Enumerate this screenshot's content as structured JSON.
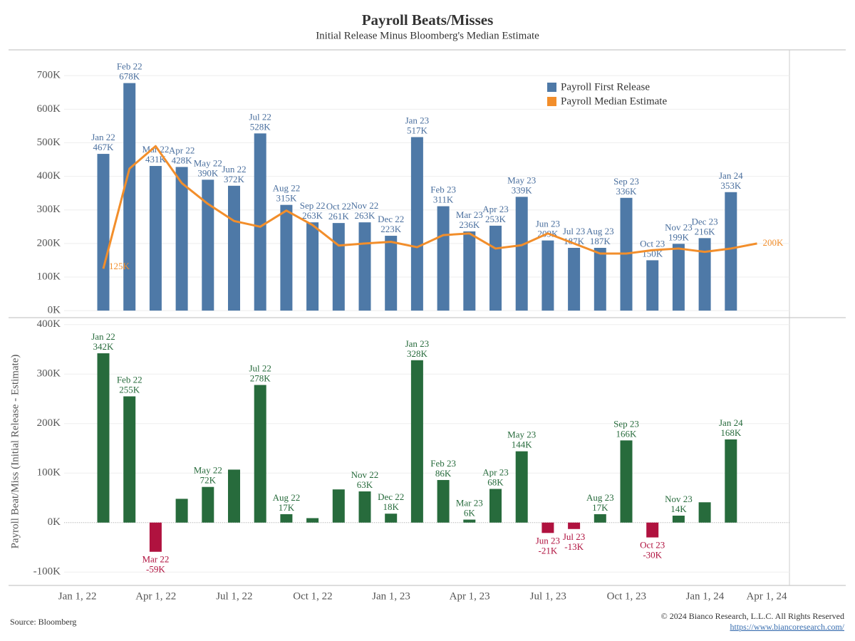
{
  "header": {
    "title": "Payroll Beats/Misses",
    "subtitle": "Initial Release Minus Bloomberg's Median Estimate"
  },
  "chart_data": [
    {
      "type": "bar",
      "categories": [
        "Jan 22",
        "Feb 22",
        "Mar 22",
        "Apr 22",
        "May 22",
        "Jun 22",
        "Jul 22",
        "Aug 22",
        "Sep 22",
        "Oct 22",
        "Nov 22",
        "Dec 22",
        "Jan 23",
        "Feb 23",
        "Mar 23",
        "Apr 23",
        "May 23",
        "Jun 23",
        "Jul 23",
        "Aug 23",
        "Sep 23",
        "Oct 23",
        "Nov 23",
        "Dec 23",
        "Jan 24",
        null
      ],
      "series": [
        {
          "name": "Payroll First Release",
          "type": "bar",
          "color": "#4e79a7",
          "values": [
            467,
            678,
            431,
            428,
            390,
            372,
            528,
            315,
            263,
            261,
            263,
            223,
            517,
            311,
            236,
            253,
            339,
            209,
            187,
            187,
            336,
            150,
            199,
            216,
            353,
            null
          ],
          "value_labels": [
            "467K",
            "678K",
            "431K",
            "428K",
            "390K",
            "372K",
            "528K",
            "315K",
            "263K",
            "261K",
            "263K",
            "223K",
            "517K",
            "311K",
            "236K",
            "253K",
            "339K",
            "209K",
            "187K",
            "187K",
            "336K",
            "150K",
            "199K",
            "216K",
            "353K",
            null
          ]
        },
        {
          "name": "Payroll Median Estimate",
          "type": "line",
          "color": "#f28e2b",
          "values": [
            125,
            423,
            490,
            380,
            318,
            267,
            250,
            298,
            255,
            194,
            200,
            205,
            189,
            225,
            230,
            185,
            195,
            230,
            200,
            170,
            170,
            180,
            185,
            175,
            185,
            200
          ],
          "value_labels": [
            "125K",
            null,
            null,
            null,
            null,
            null,
            null,
            null,
            null,
            null,
            null,
            null,
            null,
            null,
            null,
            null,
            null,
            null,
            null,
            null,
            null,
            null,
            null,
            null,
            null,
            "200K"
          ]
        }
      ],
      "ylim": [
        -21,
        777
      ],
      "yticks": [
        {
          "value": 0,
          "label": "0K"
        },
        {
          "value": 100,
          "label": "100K"
        },
        {
          "value": 200,
          "label": "200K"
        },
        {
          "value": 300,
          "label": "300K"
        },
        {
          "value": 400,
          "label": "400K"
        },
        {
          "value": 500,
          "label": "500K"
        },
        {
          "value": 600,
          "label": "600K"
        },
        {
          "value": 700,
          "label": "700K"
        }
      ],
      "grid": true,
      "legend": "top-right"
    },
    {
      "type": "beat",
      "ylabel": "Payroll Beat/Miss (Initial Release - Estimate)",
      "categories": [
        "Jan 22",
        "Feb 22",
        "Mar 22",
        "Apr 22",
        "May 22",
        "Jun 22",
        "Jul 22",
        "Aug 22",
        "Sep 22",
        "Oct 22",
        "Nov 22",
        "Dec 22",
        "Jan 23",
        "Feb 23",
        "Mar 23",
        "Apr 23",
        "May 23",
        "Jun 23",
        "Jul 23",
        "Aug 23",
        "Sep 23",
        "Oct 23",
        "Nov 23",
        "Dec 23",
        "Jan 24",
        null
      ],
      "values": [
        342,
        255,
        -59,
        48,
        72,
        107,
        278,
        17,
        9,
        67,
        63,
        18,
        328,
        86,
        6,
        68,
        144,
        -21,
        -13,
        17,
        166,
        -30,
        14,
        41,
        168,
        null
      ],
      "value_labels": [
        "342K",
        "255K",
        "-59K",
        null,
        "72K",
        null,
        "278K",
        "17K",
        null,
        null,
        "63K",
        "18K",
        "328K",
        "86K",
        "6K",
        "68K",
        "144K",
        "-21K",
        "-13K",
        "17K",
        "166K",
        "-30K",
        "14K",
        null,
        "168K",
        null
      ],
      "positive_color": "#276b3c",
      "negative_color": "#b0123f",
      "ylim": [
        -127,
        414
      ],
      "yticks": [
        {
          "value": -100,
          "label": "-100K"
        },
        {
          "value": 0,
          "label": "0K"
        },
        {
          "value": 100,
          "label": "100K"
        },
        {
          "value": 200,
          "label": "200K"
        },
        {
          "value": 300,
          "label": "300K"
        },
        {
          "value": 400,
          "label": "400K"
        }
      ],
      "grid": true,
      "xticks": [
        "Jan 1, 22",
        "Apr 1, 22",
        "Jul 1, 22",
        "Oct 1, 22",
        "Jan 1, 23",
        "Apr 1, 23",
        "Jul 1, 23",
        "Oct 1, 23",
        "Jan 1, 24",
        "Apr 1, 24"
      ]
    }
  ],
  "footer": {
    "source": "Source: Bloomberg",
    "copyright": "© 2024 Bianco Research, L.L.C. All Rights Reserved",
    "url": "https://www.biancoresearch.com/"
  }
}
